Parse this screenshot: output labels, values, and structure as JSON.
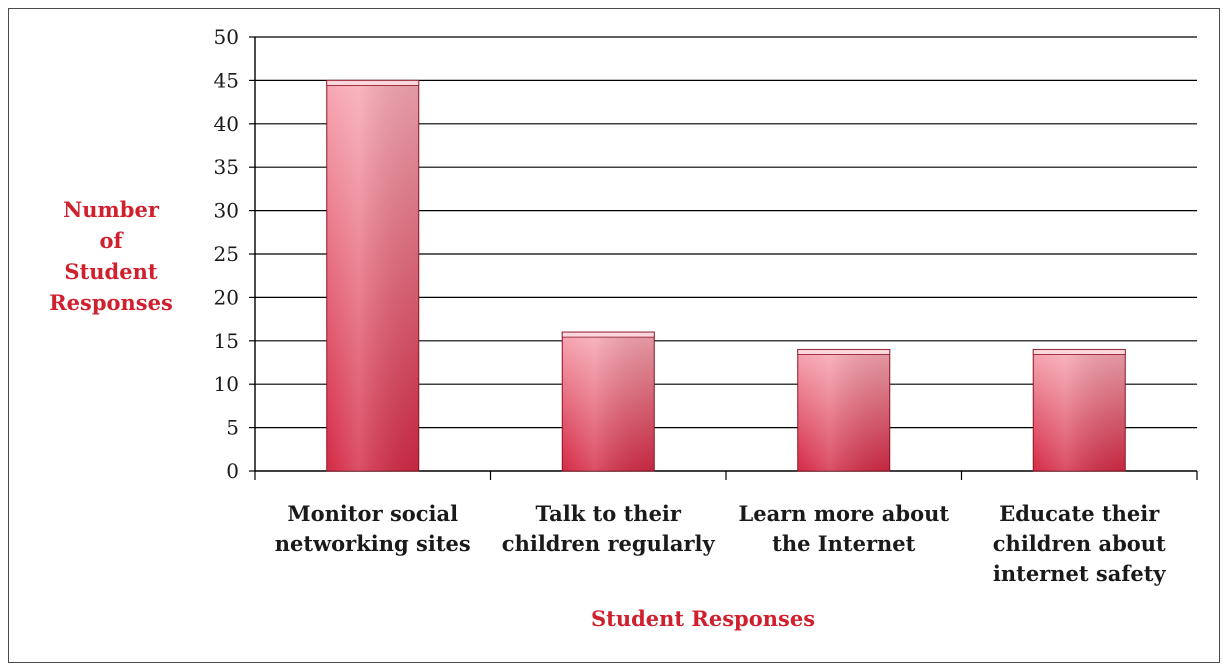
{
  "chart_data": {
    "type": "bar",
    "title": "",
    "categories": [
      [
        "Monitor social",
        "networking sites"
      ],
      [
        "Talk to their",
        "children regularly"
      ],
      [
        "Learn more about",
        "the Internet"
      ],
      [
        "Educate their",
        "children about",
        "internet safety"
      ]
    ],
    "values": [
      45,
      16,
      14,
      14
    ],
    "ylabel": [
      "Number",
      "of",
      "Student",
      "Responses"
    ],
    "xlabel": "Student Responses",
    "ylim": [
      0,
      50
    ],
    "yticks": [
      0,
      5,
      10,
      15,
      20,
      25,
      30,
      35,
      40,
      45,
      50
    ],
    "grid": true,
    "legend": "none",
    "colors": {
      "bar_top": "#f7a8b3",
      "bar_bottom": "#d42a45",
      "bar_edge": "#8c1426",
      "axis_title": "#d0202e",
      "grid": "#000000"
    }
  }
}
